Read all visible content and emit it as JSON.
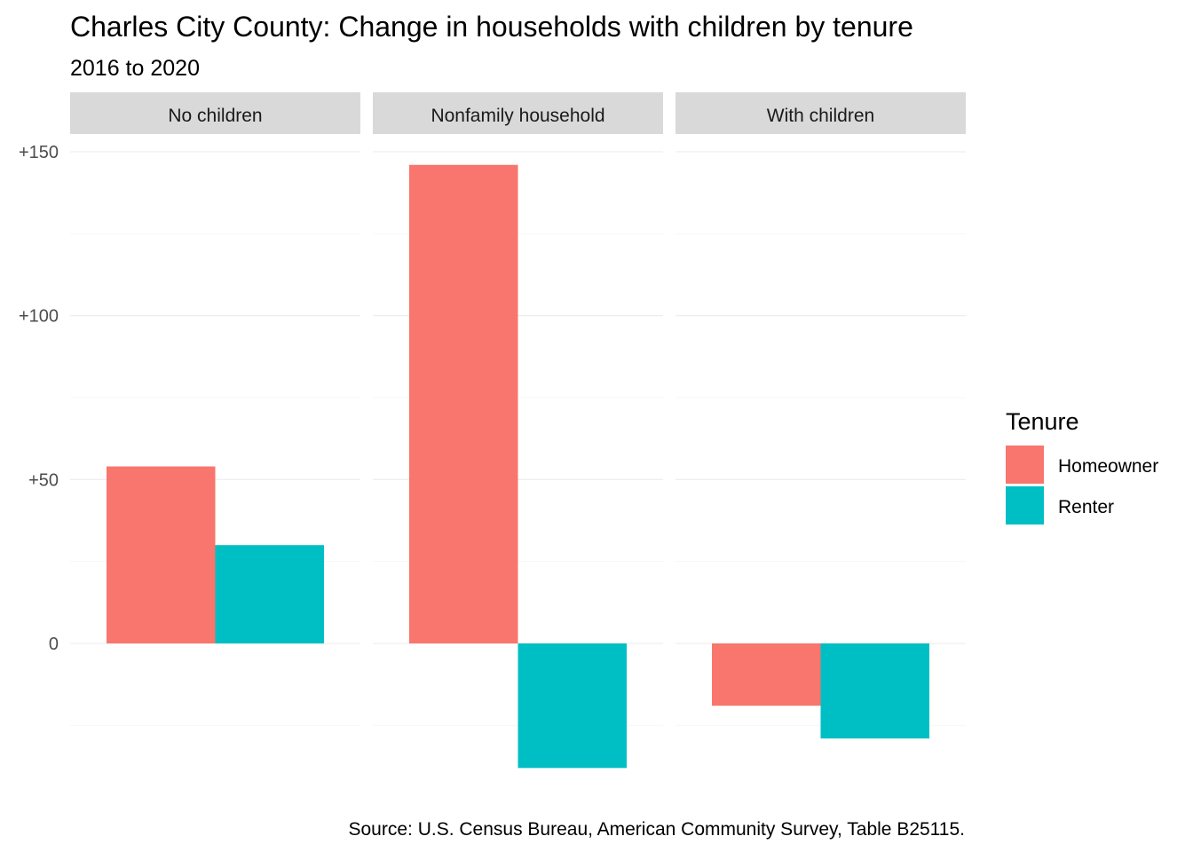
{
  "chart_data": {
    "type": "bar",
    "title": "Charles City County: Change in households with children by tenure",
    "subtitle": "2016 to 2020",
    "caption": "Source: U.S. Census Bureau, American Community Survey, Table B25115.",
    "facets": [
      "No children",
      "Nonfamily household",
      "With children"
    ],
    "series": [
      {
        "name": "Homeowner",
        "color": "#F8766D",
        "values": [
          54,
          146,
          -19
        ]
      },
      {
        "name": "Renter",
        "color": "#00BFC4",
        "values": [
          30,
          -38,
          -29
        ]
      }
    ],
    "ylim": [
      -45,
      150
    ],
    "yticks": [
      0,
      50,
      100,
      150
    ],
    "ytick_labels": [
      "0",
      "+50",
      "+100",
      "+150"
    ],
    "legend": {
      "title": "Tenure",
      "position": "right"
    },
    "grid": true
  }
}
